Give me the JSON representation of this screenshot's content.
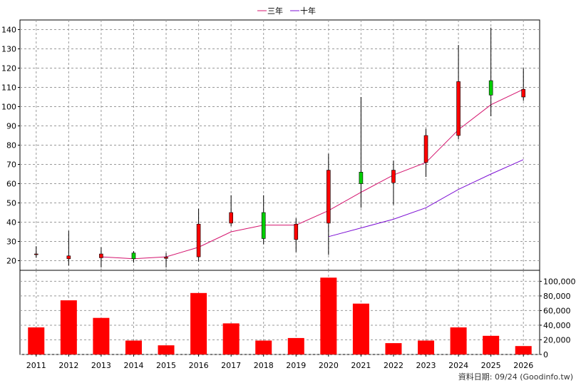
{
  "chart_data": [
    {
      "type": "candlestick",
      "legend": [
        {
          "name": "三年",
          "color": "#d4146e"
        },
        {
          "name": "十年",
          "color": "#7c0fd4"
        }
      ],
      "ylim": [
        15,
        145
      ],
      "yticks": [
        20,
        30,
        40,
        50,
        60,
        70,
        80,
        90,
        100,
        110,
        120,
        130,
        140
      ],
      "grid": true,
      "up_color": "#ff0000",
      "down_color": "#00d000",
      "candles": [
        {
          "x": "2011",
          "open": 23.5,
          "close": 23.5,
          "high": 27.5,
          "low": 21.5
        },
        {
          "x": "2012",
          "open": 21.0,
          "close": 22.5,
          "high": 35.5,
          "low": 17.5
        },
        {
          "x": "2013",
          "open": 21.5,
          "close": 23.5,
          "high": 27.0,
          "low": 16.5
        },
        {
          "x": "2014",
          "open": 24.0,
          "close": 21.0,
          "high": 25.0,
          "low": 19.0
        },
        {
          "x": "2015",
          "open": 21.2,
          "close": 21.8,
          "high": 24.0,
          "low": 16.5
        },
        {
          "x": "2016",
          "open": 22.0,
          "close": 39.0,
          "high": 47.0,
          "low": 19.5
        },
        {
          "x": "2017",
          "open": 39.5,
          "close": 45.0,
          "high": 54.0,
          "low": 38.0
        },
        {
          "x": "2018",
          "open": 45.0,
          "close": 31.5,
          "high": 54.0,
          "low": 28.5
        },
        {
          "x": "2019",
          "open": 31.0,
          "close": 39.0,
          "high": 42.0,
          "low": 24.5
        },
        {
          "x": "2020",
          "open": 39.5,
          "close": 67.0,
          "high": 75.5,
          "low": 23.0
        },
        {
          "x": "2021",
          "open": 66.0,
          "close": 60.0,
          "high": 105.0,
          "low": 47.5
        },
        {
          "x": "2022",
          "open": 60.5,
          "close": 67.0,
          "high": 72.0,
          "low": 49.0
        },
        {
          "x": "2023",
          "open": 71.0,
          "close": 85.0,
          "high": 88.5,
          "low": 63.5
        },
        {
          "x": "2024",
          "open": 85.0,
          "close": 113.0,
          "high": 132.0,
          "low": 83.0
        },
        {
          "x": "2025",
          "open": 113.5,
          "close": 106.0,
          "high": 141.0,
          "low": 95.0
        },
        {
          "x": "2026",
          "open": 105.0,
          "close": 109.0,
          "high": 120.0,
          "low": 103.0
        }
      ],
      "series": [
        {
          "name": "三年",
          "color": "#d4146e",
          "values": [
            null,
            null,
            22.0,
            21.0,
            22.0,
            27.0,
            35.0,
            38.5,
            38.5,
            46.0,
            55.5,
            64.5,
            71.0,
            88.0,
            101.0,
            109.0
          ]
        },
        {
          "name": "十年",
          "color": "#7c0fd4",
          "values": [
            null,
            null,
            null,
            null,
            null,
            null,
            null,
            null,
            null,
            32.5,
            37.0,
            41.5,
            47.5,
            57.0,
            65.0,
            72.5
          ]
        }
      ]
    },
    {
      "type": "bar",
      "categories": [
        "2011",
        "2012",
        "2013",
        "2014",
        "2015",
        "2016",
        "2017",
        "2018",
        "2019",
        "2020",
        "2021",
        "2022",
        "2023",
        "2024",
        "2025",
        "2026"
      ],
      "values": [
        37000,
        74000,
        50000,
        19000,
        12500,
        84000,
        42500,
        19000,
        22500,
        105000,
        69500,
        15500,
        19000,
        37000,
        25500,
        11500
      ],
      "color": "#ff0000",
      "ylim": [
        0,
        115000
      ],
      "yticks": [
        0,
        20000,
        40000,
        60000,
        80000,
        100000
      ],
      "ytick_labels": [
        "0",
        "20,000",
        "40,000",
        "60,000",
        "80,000",
        "100,000"
      ],
      "grid": true
    }
  ],
  "xtick_labels": [
    "2011",
    "2012",
    "2013",
    "2014",
    "2015",
    "2016",
    "2017",
    "2018",
    "2019",
    "2020",
    "2021",
    "2022",
    "2023",
    "2024",
    "2025",
    "2026"
  ],
  "source": "資料日期: 09/24 (Goodinfo.tw)"
}
